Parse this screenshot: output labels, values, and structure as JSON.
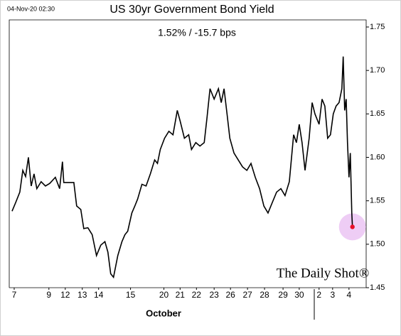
{
  "chart_data": {
    "type": "line",
    "header": "04-Nov-20 02:30",
    "title": "US 30yr Government Bond Yield",
    "subtitle": "1.52%  /  -15.7 bps",
    "xlabel": "October",
    "watermark": "The Daily Shot®",
    "x": [
      -0.13,
      0.09,
      0.34,
      0.52,
      0.69,
      0.86,
      1.03,
      1.2,
      1.37,
      1.63,
      1.89,
      2.15,
      2.49,
      2.75,
      2.92,
      3.0,
      3.61,
      3.78,
      4.03,
      4.21,
      4.46,
      4.72,
      4.98,
      5.24,
      5.49,
      5.67,
      5.84,
      6.01,
      6.27,
      6.52,
      6.7,
      6.87,
      7.12,
      7.3,
      7.47,
      7.73,
      7.98,
      8.24,
      8.5,
      8.67,
      8.84,
      9.1,
      9.36,
      9.61,
      9.87,
      10.04,
      10.3,
      10.56,
      10.73,
      10.99,
      11.24,
      11.5,
      11.67,
      11.85,
      12.1,
      12.36,
      12.53,
      12.7,
      12.88,
      13.05,
      13.3,
      13.56,
      13.82,
      14.08,
      14.33,
      14.59,
      14.85,
      15.11,
      15.36,
      15.62,
      15.88,
      16.14,
      16.39,
      16.65,
      16.91,
      17.08,
      17.25,
      17.42,
      17.6,
      17.85,
      18.03,
      18.2,
      18.45,
      18.63,
      18.8,
      18.97,
      19.14,
      19.31,
      19.48,
      19.66,
      19.83,
      19.91,
      20.0,
      20.09,
      20.17,
      20.26,
      20.34,
      20.43,
      20.47
    ],
    "series": [
      {
        "color": "#000000",
        "values": [
          1.538,
          1.548,
          1.56,
          1.585,
          1.578,
          1.6,
          1.567,
          1.581,
          1.564,
          1.572,
          1.567,
          1.57,
          1.577,
          1.564,
          1.595,
          1.571,
          1.571,
          1.544,
          1.54,
          1.518,
          1.519,
          1.511,
          1.487,
          1.499,
          1.503,
          1.491,
          1.466,
          1.462,
          1.487,
          1.503,
          1.511,
          1.515,
          1.536,
          1.544,
          1.552,
          1.569,
          1.567,
          1.581,
          1.597,
          1.593,
          1.609,
          1.622,
          1.63,
          1.626,
          1.654,
          1.642,
          1.622,
          1.626,
          1.609,
          1.617,
          1.613,
          1.617,
          1.646,
          1.679,
          1.667,
          1.679,
          1.663,
          1.679,
          1.65,
          1.622,
          1.605,
          1.597,
          1.589,
          1.585,
          1.593,
          1.577,
          1.564,
          1.544,
          1.536,
          1.548,
          1.56,
          1.564,
          1.556,
          1.572,
          1.626,
          1.617,
          1.638,
          1.617,
          1.585,
          1.622,
          1.663,
          1.65,
          1.638,
          1.667,
          1.659,
          1.622,
          1.626,
          1.65,
          1.659,
          1.663,
          1.679,
          1.716,
          1.654,
          1.667,
          1.617,
          1.577,
          1.605,
          1.536,
          1.52
        ]
      }
    ],
    "last_point_color": "#e8102a",
    "highlight_color": "#eecdf5",
    "xlim": [
      -0.3,
      21.3
    ],
    "xticks": [
      {
        "value": 0,
        "label": "7"
      },
      {
        "value": 2.1,
        "label": "9"
      },
      {
        "value": 3.09,
        "label": "12"
      },
      {
        "value": 4.12,
        "label": "13"
      },
      {
        "value": 5.11,
        "label": "14"
      },
      {
        "value": 7.04,
        "label": "15"
      },
      {
        "value": 9.06,
        "label": "20"
      },
      {
        "value": 10.04,
        "label": "21"
      },
      {
        "value": 11.03,
        "label": "22"
      },
      {
        "value": 12.1,
        "label": "23"
      },
      {
        "value": 13.09,
        "label": "26"
      },
      {
        "value": 14.12,
        "label": "27"
      },
      {
        "value": 15.15,
        "label": "28"
      },
      {
        "value": 16.27,
        "label": "29"
      },
      {
        "value": 17.25,
        "label": "30"
      },
      {
        "value": 18.45,
        "label": "2"
      },
      {
        "value": 19.27,
        "label": "3"
      },
      {
        "value": 20.26,
        "label": "4"
      }
    ],
    "ylim": [
      1.45,
      1.75
    ],
    "yticks": [
      1.45,
      {
        "value": 1.5,
        "label": "1.50"
      },
      1.55,
      {
        "value": 1.6,
        "label": "1.60"
      },
      1.65,
      {
        "value": 1.7,
        "label": "1.70"
      },
      1.75
    ]
  }
}
